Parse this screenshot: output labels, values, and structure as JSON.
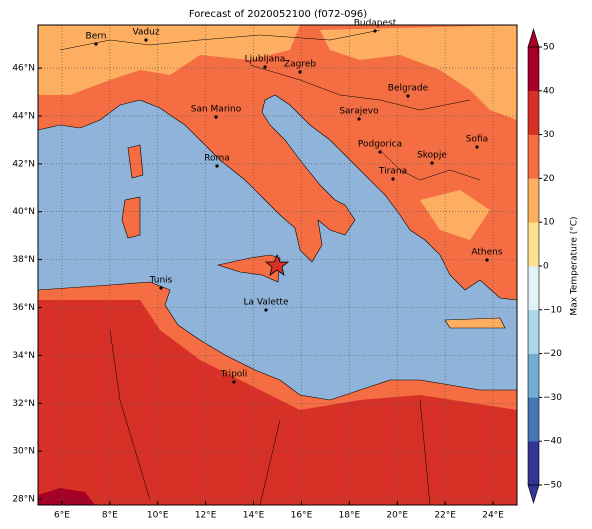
{
  "title": "Forecast of 2020052100 (f072-096)",
  "map": {
    "xlim": [
      5,
      25
    ],
    "ylim": [
      27.75,
      47.8
    ],
    "grid": true,
    "xticks": [
      {
        "value": 6,
        "label": "6°E"
      },
      {
        "value": 8,
        "label": "8°E"
      },
      {
        "value": 10,
        "label": "10°E"
      },
      {
        "value": 12,
        "label": "12°E"
      },
      {
        "value": 14,
        "label": "14°E"
      },
      {
        "value": 16,
        "label": "16°E"
      },
      {
        "value": 18,
        "label": "18°E"
      },
      {
        "value": 20,
        "label": "20°E"
      },
      {
        "value": 22,
        "label": "22°E"
      },
      {
        "value": 24,
        "label": "24°E"
      }
    ],
    "yticks": [
      {
        "value": 28,
        "label": "28°N"
      },
      {
        "value": 30,
        "label": "30°N"
      },
      {
        "value": 32,
        "label": "32°N"
      },
      {
        "value": 34,
        "label": "34°N"
      },
      {
        "value": 36,
        "label": "36°N"
      },
      {
        "value": 38,
        "label": "38°N"
      },
      {
        "value": 40,
        "label": "40°N"
      },
      {
        "value": 42,
        "label": "42°N"
      },
      {
        "value": 44,
        "label": "44°N"
      },
      {
        "value": 46,
        "label": "46°N"
      }
    ]
  },
  "cities": [
    "Bern",
    "Vaduz",
    "Budapest",
    "Ljubljana",
    "Zagreb",
    "Belgrade",
    "San Marino",
    "Sarajevo",
    "Sofia",
    "Podgorica",
    "Skopje",
    "Roma",
    "Tirana",
    "Athens",
    "Tunis",
    "La Valette",
    "Tripoli"
  ],
  "colorbar": {
    "label": "Max Temperature (°C)",
    "lim": [
      -50,
      50
    ],
    "ticks": [
      {
        "value": -50,
        "label": "−50"
      },
      {
        "value": -40,
        "label": "−40"
      },
      {
        "value": -30,
        "label": "−30"
      },
      {
        "value": -20,
        "label": "−20"
      },
      {
        "value": -10,
        "label": "−10"
      },
      0,
      10,
      20,
      30,
      40,
      50
    ],
    "colors": [
      "#313695",
      "#4575b4",
      "#74add1",
      "#abd9e9",
      "#e0f3f8",
      "#fee090",
      "#fdae61",
      "#f46d43",
      "#d73027",
      "#a50026"
    ]
  }
}
